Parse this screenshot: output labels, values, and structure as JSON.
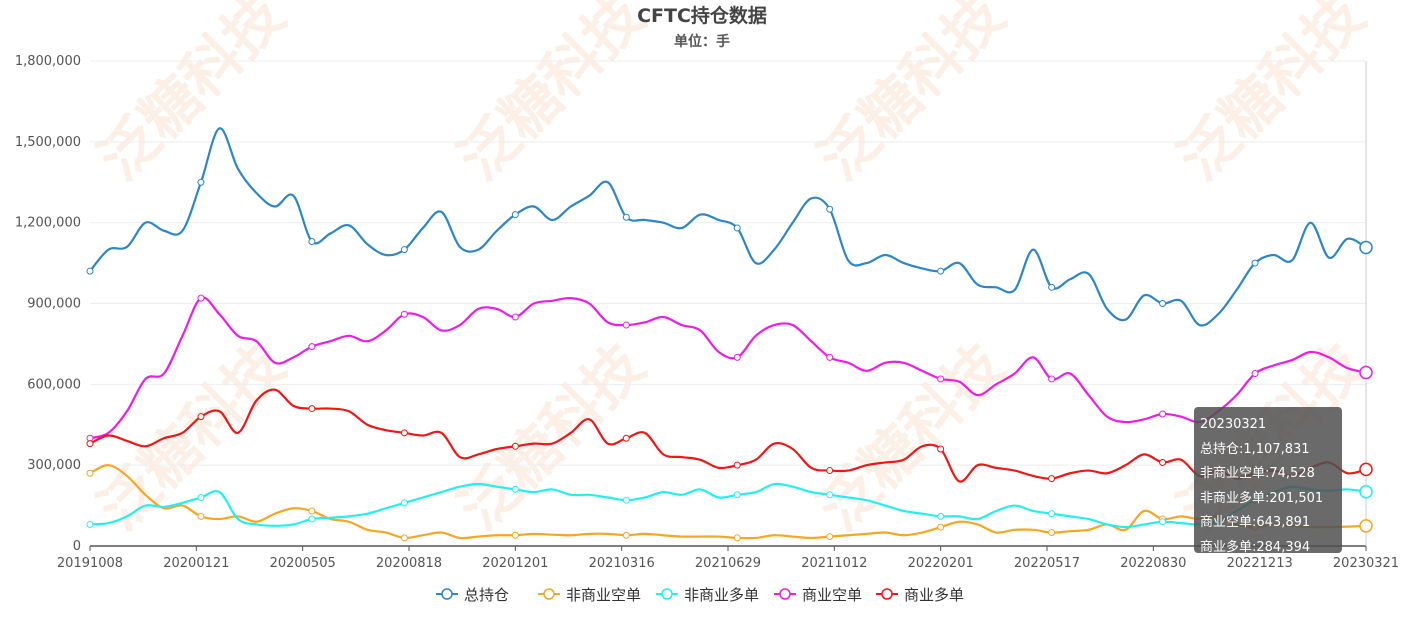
{
  "chart_data": {
    "type": "line",
    "title": "CFTC持仓数据",
    "subtitle": "单位：手",
    "ylim": [
      0,
      1800000
    ],
    "y_ticks": [
      "0",
      "300,000",
      "600,000",
      "900,000",
      "1,200,000",
      "1,500,000",
      "1,800,000"
    ],
    "x_tick_labels": [
      "20191008",
      "20200121",
      "20200505",
      "20200818",
      "20201201",
      "20210316",
      "20210629",
      "20211012",
      "20220201",
      "20220517",
      "20220830",
      "20221213",
      "20230321"
    ],
    "series": [
      {
        "name": "总持仓",
        "color": "#2c86c8",
        "values": [
          1020000,
          1100000,
          1110000,
          1200000,
          1170000,
          1170000,
          1350000,
          1550000,
          1400000,
          1310000,
          1260000,
          1300000,
          1130000,
          1160000,
          1190000,
          1120000,
          1080000,
          1100000,
          1180000,
          1240000,
          1110000,
          1100000,
          1170000,
          1230000,
          1260000,
          1210000,
          1260000,
          1300000,
          1350000,
          1220000,
          1210000,
          1200000,
          1180000,
          1230000,
          1210000,
          1180000,
          1050000,
          1100000,
          1200000,
          1290000,
          1250000,
          1060000,
          1050000,
          1080000,
          1050000,
          1030000,
          1020000,
          1050000,
          970000,
          960000,
          950000,
          1100000,
          960000,
          990000,
          1010000,
          880000,
          840000,
          930000,
          900000,
          910000,
          820000,
          860000,
          950000,
          1050000,
          1080000,
          1060000,
          1200000,
          1070000,
          1140000,
          1107831
        ]
      },
      {
        "name": "非商业空单",
        "color": "#f5a623",
        "values": [
          270000,
          300000,
          260000,
          190000,
          140000,
          150000,
          110000,
          100000,
          110000,
          90000,
          120000,
          140000,
          130000,
          100000,
          90000,
          60000,
          50000,
          30000,
          40000,
          50000,
          30000,
          35000,
          40000,
          40000,
          45000,
          42000,
          40000,
          45000,
          45000,
          40000,
          45000,
          40000,
          35000,
          35000,
          35000,
          30000,
          30000,
          40000,
          35000,
          30000,
          35000,
          40000,
          45000,
          50000,
          40000,
          50000,
          70000,
          90000,
          80000,
          50000,
          60000,
          60000,
          50000,
          55000,
          60000,
          80000,
          60000,
          130000,
          100000,
          110000,
          100000,
          110000,
          80000,
          70000,
          80000,
          75000,
          70000,
          70000,
          72000,
          74528
        ]
      },
      {
        "name": "非商业多单",
        "color": "#21f0ee",
        "values": [
          80000,
          85000,
          110000,
          150000,
          145000,
          160000,
          180000,
          200000,
          100000,
          80000,
          75000,
          80000,
          100000,
          105000,
          110000,
          120000,
          140000,
          160000,
          180000,
          200000,
          220000,
          230000,
          220000,
          210000,
          200000,
          210000,
          190000,
          190000,
          180000,
          170000,
          180000,
          200000,
          190000,
          210000,
          180000,
          190000,
          200000,
          230000,
          220000,
          200000,
          190000,
          180000,
          170000,
          150000,
          130000,
          120000,
          110000,
          110000,
          100000,
          130000,
          150000,
          130000,
          120000,
          110000,
          100000,
          80000,
          70000,
          80000,
          90000,
          85000,
          80000,
          90000,
          130000,
          170000,
          200000,
          220000,
          210000,
          205000,
          210000,
          201501
        ]
      },
      {
        "name": "商业空单",
        "color": "#ee1ce6",
        "values": [
          400000,
          420000,
          500000,
          620000,
          640000,
          780000,
          920000,
          860000,
          780000,
          760000,
          680000,
          700000,
          740000,
          760000,
          780000,
          760000,
          800000,
          860000,
          850000,
          800000,
          820000,
          880000,
          880000,
          850000,
          900000,
          910000,
          920000,
          900000,
          830000,
          820000,
          830000,
          850000,
          820000,
          800000,
          720000,
          700000,
          780000,
          820000,
          820000,
          760000,
          700000,
          680000,
          650000,
          680000,
          680000,
          650000,
          620000,
          610000,
          560000,
          600000,
          640000,
          700000,
          620000,
          640000,
          560000,
          480000,
          460000,
          470000,
          490000,
          480000,
          460000,
          500000,
          560000,
          640000,
          670000,
          690000,
          720000,
          700000,
          660000,
          643891
        ]
      },
      {
        "name": "商业多单",
        "color": "#f11616",
        "values": [
          380000,
          410000,
          390000,
          370000,
          400000,
          420000,
          480000,
          500000,
          420000,
          540000,
          580000,
          520000,
          510000,
          510000,
          500000,
          450000,
          430000,
          420000,
          410000,
          420000,
          330000,
          340000,
          360000,
          370000,
          380000,
          380000,
          420000,
          470000,
          380000,
          400000,
          420000,
          340000,
          330000,
          320000,
          290000,
          300000,
          320000,
          380000,
          360000,
          290000,
          280000,
          280000,
          300000,
          310000,
          320000,
          370000,
          360000,
          240000,
          300000,
          290000,
          280000,
          260000,
          250000,
          270000,
          280000,
          270000,
          300000,
          340000,
          310000,
          320000,
          260000,
          280000,
          250000,
          270000,
          280000,
          260000,
          290000,
          310000,
          270000,
          284394
        ]
      }
    ],
    "legend_position": "bottom",
    "tooltip": {
      "date": "20230321",
      "lines": [
        "总持仓:1,107,831",
        "非商业空单:74,528",
        "非商业多单:201,501",
        "商业空单:643,891",
        "商业多单:284,394"
      ]
    },
    "watermark": "泛糖科技"
  }
}
